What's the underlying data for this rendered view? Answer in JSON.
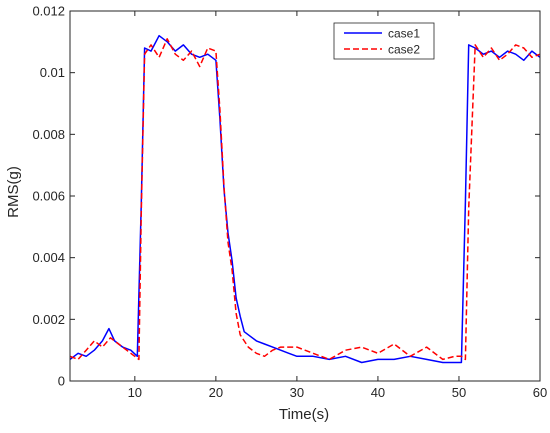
{
  "chart_data": {
    "type": "line",
    "title": "",
    "xlabel": "Time(s)",
    "ylabel": "RMS(g)",
    "xlim": [
      2,
      60
    ],
    "ylim": [
      0,
      0.012
    ],
    "xticks": [
      10,
      20,
      30,
      40,
      50,
      60
    ],
    "xtick_labels": [
      "10",
      "20",
      "30",
      "40",
      "50",
      "60"
    ],
    "yticks": [
      0,
      0.002,
      0.004,
      0.006,
      0.008,
      0.01,
      0.012
    ],
    "ytick_labels": [
      "0",
      "0.002",
      "0.004",
      "0.006",
      "0.008",
      "0.01",
      "0.012"
    ],
    "grid": false,
    "legend_position": "top-right",
    "series": [
      {
        "name": "case1",
        "color": "#0000ff",
        "line_style": "solid",
        "x": [
          2,
          3,
          4,
          5,
          6,
          6.8,
          7.5,
          8.5,
          9.5,
          10.3,
          10.8,
          11.2,
          12,
          13,
          14,
          15,
          16,
          17,
          18,
          19,
          20,
          20.5,
          21,
          21.5,
          22,
          22.5,
          23,
          23.5,
          24,
          25,
          26,
          27,
          28,
          29,
          30,
          32,
          34,
          36,
          38,
          40,
          42,
          44,
          46,
          48,
          49.5,
          50.3,
          50.8,
          51.2,
          52,
          53,
          54,
          55,
          56,
          57,
          58,
          59,
          60
        ],
        "y": [
          0.0007,
          0.0009,
          0.0008,
          0.001,
          0.0013,
          0.0017,
          0.0013,
          0.0011,
          0.001,
          0.0008,
          0.0058,
          0.0108,
          0.0107,
          0.0112,
          0.011,
          0.0107,
          0.0109,
          0.0106,
          0.0105,
          0.0106,
          0.0104,
          0.0085,
          0.0062,
          0.0048,
          0.0039,
          0.0027,
          0.0021,
          0.0016,
          0.0015,
          0.0013,
          0.0012,
          0.0011,
          0.001,
          0.0009,
          0.0008,
          0.0008,
          0.0007,
          0.0008,
          0.0006,
          0.0007,
          0.0007,
          0.0008,
          0.0007,
          0.0006,
          0.0006,
          0.0006,
          0.0058,
          0.0109,
          0.0108,
          0.0106,
          0.0107,
          0.0105,
          0.0107,
          0.0106,
          0.0104,
          0.0107,
          0.0105
        ]
      },
      {
        "name": "case2",
        "color": "#ff0000",
        "line_style": "dashed",
        "x": [
          2,
          3,
          4,
          5,
          6,
          7,
          8,
          9,
          10,
          10.5,
          10.8,
          11.2,
          12,
          13,
          14,
          15,
          16,
          17,
          18,
          19,
          20,
          20.5,
          21,
          21.5,
          22,
          22.5,
          23,
          23.5,
          24,
          25,
          26,
          27,
          28,
          30,
          32,
          34,
          36,
          38,
          40,
          42,
          44,
          46,
          48,
          49.5,
          50.3,
          50.8,
          51.2,
          52,
          53,
          54,
          55,
          56,
          57,
          58,
          59,
          60
        ],
        "y": [
          0.0008,
          0.0007,
          0.001,
          0.0013,
          0.0011,
          0.0014,
          0.0012,
          0.001,
          0.0008,
          0.0007,
          0.0055,
          0.0106,
          0.0109,
          0.0105,
          0.0111,
          0.0106,
          0.0104,
          0.0107,
          0.0102,
          0.0108,
          0.0107,
          0.0088,
          0.0063,
          0.0045,
          0.0036,
          0.0022,
          0.0015,
          0.0013,
          0.0011,
          0.0009,
          0.0008,
          0.001,
          0.0011,
          0.0011,
          0.0009,
          0.0007,
          0.001,
          0.0011,
          0.0009,
          0.0012,
          0.0008,
          0.0011,
          0.0007,
          0.0008,
          0.0008,
          0.0007,
          0.0056,
          0.0109,
          0.0105,
          0.0108,
          0.0104,
          0.0106,
          0.0109,
          0.0108,
          0.0105,
          0.0106
        ]
      }
    ]
  }
}
